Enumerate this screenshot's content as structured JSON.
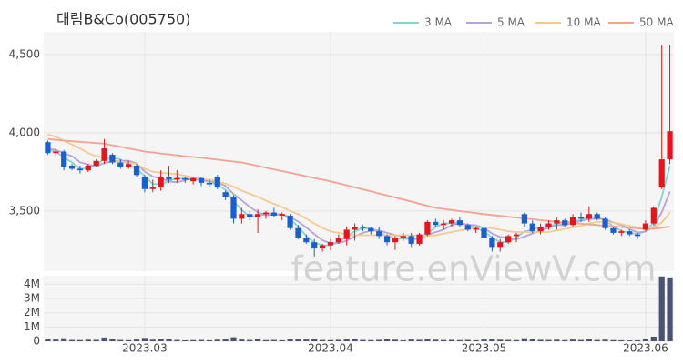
{
  "chart_data": {
    "type": "candlestick",
    "title": "대림B&Co(005750)",
    "watermark": "feature.enViewV.com",
    "categories": [
      null,
      null,
      null,
      null,
      null,
      null,
      null,
      null,
      null,
      null,
      null,
      null,
      "2023.03",
      null,
      null,
      null,
      null,
      null,
      null,
      null,
      null,
      null,
      null,
      null,
      null,
      null,
      null,
      null,
      null,
      null,
      null,
      null,
      null,
      null,
      null,
      "2023.04",
      null,
      null,
      null,
      null,
      null,
      null,
      null,
      null,
      null,
      null,
      null,
      null,
      null,
      null,
      null,
      null,
      null,
      null,
      "2023.05",
      null,
      null,
      null,
      null,
      null,
      null,
      null,
      null,
      null,
      null,
      null,
      null,
      null,
      null,
      null,
      null,
      null,
      null,
      null,
      "2023.06",
      null,
      null,
      null
    ],
    "open": [
      3940,
      3870,
      3880,
      3790,
      3770,
      3760,
      3790,
      3820,
      3860,
      3810,
      3780,
      3790,
      3720,
      3640,
      3650,
      3720,
      3700,
      3710,
      3690,
      3710,
      3680,
      3720,
      3620,
      3590,
      3450,
      3480,
      3460,
      3480,
      3490,
      3470,
      3470,
      3390,
      3330,
      3300,
      3260,
      3280,
      3300,
      3320,
      3380,
      3400,
      3390,
      3370,
      3340,
      3300,
      3330,
      3340,
      3290,
      3350,
      3430,
      3410,
      3420,
      3440,
      3410,
      3380,
      3390,
      3330,
      3270,
      3300,
      3340,
      3480,
      3420,
      3370,
      3400,
      3420,
      3440,
      3410,
      3460,
      3450,
      3480,
      3450,
      3390,
      3360,
      3370,
      3350,
      3380,
      3420,
      3650,
      3830
    ],
    "high": [
      3950,
      3900,
      3890,
      3800,
      3790,
      3800,
      3830,
      3960,
      3870,
      3830,
      3820,
      3800,
      3730,
      3700,
      3760,
      3790,
      3760,
      3720,
      3720,
      3720,
      3700,
      3730,
      3630,
      3600,
      3520,
      3500,
      3510,
      3500,
      3520,
      3490,
      3480,
      3410,
      3350,
      3320,
      3290,
      3320,
      3350,
      3400,
      3420,
      3410,
      3400,
      3400,
      3350,
      3340,
      3360,
      3360,
      3360,
      3440,
      3450,
      3440,
      3450,
      3460,
      3420,
      3400,
      3400,
      3340,
      3320,
      3350,
      3360,
      3490,
      3440,
      3420,
      3440,
      3460,
      3450,
      3480,
      3490,
      3530,
      3490,
      3460,
      3400,
      3380,
      3380,
      3360,
      3440,
      3530,
      4560,
      4560
    ],
    "low": [
      3860,
      3850,
      3760,
      3760,
      3740,
      3750,
      3780,
      3800,
      3800,
      3770,
      3770,
      3720,
      3620,
      3620,
      3630,
      3680,
      3680,
      3680,
      3670,
      3660,
      3650,
      3640,
      3570,
      3420,
      3420,
      3440,
      3360,
      3450,
      3460,
      3440,
      3380,
      3320,
      3290,
      3210,
      3240,
      3250,
      3290,
      3280,
      3310,
      3370,
      3350,
      3320,
      3280,
      3250,
      3310,
      3270,
      3280,
      3340,
      3400,
      3380,
      3400,
      3400,
      3370,
      3360,
      3320,
      3240,
      3240,
      3290,
      3300,
      3400,
      3360,
      3350,
      3380,
      3380,
      3400,
      3400,
      3430,
      3430,
      3440,
      3380,
      3350,
      3340,
      3340,
      3320,
      3370,
      3410,
      3640,
      3800
    ],
    "close": [
      3870,
      3880,
      3780,
      3770,
      3760,
      3790,
      3820,
      3900,
      3810,
      3780,
      3800,
      3730,
      3640,
      3650,
      3720,
      3700,
      3710,
      3700,
      3710,
      3680,
      3670,
      3650,
      3590,
      3450,
      3480,
      3460,
      3480,
      3490,
      3470,
      3480,
      3390,
      3330,
      3300,
      3260,
      3280,
      3300,
      3330,
      3380,
      3400,
      3390,
      3370,
      3340,
      3300,
      3330,
      3340,
      3290,
      3350,
      3430,
      3410,
      3420,
      3440,
      3410,
      3380,
      3390,
      3330,
      3270,
      3300,
      3340,
      3350,
      3420,
      3370,
      3400,
      3420,
      3440,
      3410,
      3460,
      3450,
      3480,
      3450,
      3390,
      3360,
      3370,
      3350,
      3340,
      3420,
      3520,
      3830,
      4010
    ],
    "volume": [
      180000,
      120000,
      210000,
      90000,
      80000,
      110000,
      100000,
      260000,
      150000,
      90000,
      80000,
      120000,
      230000,
      110000,
      160000,
      130000,
      90000,
      70000,
      80000,
      90000,
      70000,
      110000,
      140000,
      280000,
      120000,
      90000,
      170000,
      80000,
      90000,
      70000,
      130000,
      150000,
      120000,
      190000,
      90000,
      80000,
      100000,
      140000,
      160000,
      90000,
      80000,
      100000,
      130000,
      110000,
      70000,
      120000,
      100000,
      180000,
      110000,
      90000,
      100000,
      80000,
      90000,
      70000,
      120000,
      170000,
      110000,
      90000,
      80000,
      210000,
      130000,
      100000,
      90000,
      110000,
      80000,
      120000,
      90000,
      150000,
      90000,
      110000,
      80000,
      70000,
      60000,
      70000,
      150000,
      320000,
      4550000,
      4480000
    ],
    "up_color": "#e3161e",
    "down_color": "#1a5fd0",
    "volume_color": "#4a5372",
    "series": [
      {
        "name": "3 MA",
        "color": "#86d3d3",
        "values": [
          3890,
          3880,
          3843,
          3810,
          3770,
          3773,
          3790,
          3837,
          3843,
          3830,
          3797,
          3770,
          3723,
          3673,
          3670,
          3690,
          3710,
          3703,
          3707,
          3697,
          3687,
          3667,
          3637,
          3563,
          3507,
          3463,
          3473,
          3477,
          3480,
          3480,
          3447,
          3400,
          3340,
          3297,
          3280,
          3280,
          3303,
          3337,
          3370,
          3390,
          3387,
          3367,
          3337,
          3323,
          3323,
          3320,
          3327,
          3357,
          3397,
          3420,
          3423,
          3423,
          3410,
          3393,
          3367,
          3330,
          3300,
          3303,
          3330,
          3370,
          3380,
          3397,
          3397,
          3420,
          3423,
          3437,
          3440,
          3463,
          3460,
          3440,
          3400,
          3373,
          3360,
          3353,
          3370,
          3427,
          3590,
          3787
        ]
      },
      {
        "name": "5 MA",
        "color": "#b7a3d6",
        "values": [
          3900,
          3890,
          3870,
          3850,
          3812,
          3796,
          3784,
          3808,
          3816,
          3820,
          3822,
          3804,
          3752,
          3720,
          3708,
          3688,
          3684,
          3696,
          3708,
          3700,
          3694,
          3682,
          3660,
          3608,
          3568,
          3526,
          3492,
          3472,
          3476,
          3476,
          3462,
          3432,
          3394,
          3352,
          3312,
          3294,
          3294,
          3310,
          3338,
          3360,
          3374,
          3376,
          3360,
          3346,
          3336,
          3320,
          3322,
          3348,
          3364,
          3380,
          3410,
          3422,
          3412,
          3408,
          3390,
          3356,
          3334,
          3326,
          3318,
          3336,
          3356,
          3376,
          3392,
          3410,
          3408,
          3426,
          3436,
          3448,
          3450,
          3446,
          3426,
          3410,
          3384,
          3362,
          3368,
          3400,
          3492,
          3624
        ]
      },
      {
        "name": "10 MA",
        "color": "#f5c990",
        "values": [
          3990,
          3975,
          3950,
          3925,
          3900,
          3870,
          3850,
          3840,
          3825,
          3815,
          3810,
          3800,
          3770,
          3750,
          3745,
          3740,
          3735,
          3725,
          3715,
          3705,
          3700,
          3690,
          3675,
          3655,
          3630,
          3610,
          3590,
          3565,
          3545,
          3525,
          3500,
          3480,
          3450,
          3420,
          3390,
          3370,
          3360,
          3350,
          3345,
          3345,
          3345,
          3345,
          3345,
          3345,
          3345,
          3345,
          3340,
          3340,
          3345,
          3355,
          3365,
          3375,
          3385,
          3395,
          3395,
          3390,
          3380,
          3370,
          3365,
          3365,
          3365,
          3365,
          3365,
          3375,
          3385,
          3395,
          3405,
          3420,
          3430,
          3430,
          3425,
          3415,
          3405,
          3395,
          3390,
          3395,
          3425,
          3490
        ]
      },
      {
        "name": "50 MA",
        "color": "#f3a38e",
        "values": [
          3960,
          3955,
          3950,
          3946,
          3942,
          3938,
          3934,
          3930,
          3920,
          3910,
          3900,
          3890,
          3880,
          3874,
          3868,
          3862,
          3856,
          3850,
          3845,
          3840,
          3834,
          3828,
          3822,
          3816,
          3810,
          3799,
          3788,
          3777,
          3766,
          3755,
          3744,
          3733,
          3722,
          3711,
          3700,
          3690,
          3677,
          3664,
          3651,
          3638,
          3625,
          3612,
          3599,
          3586,
          3573,
          3560,
          3546,
          3533,
          3520,
          3513,
          3506,
          3499,
          3493,
          3486,
          3480,
          3474,
          3469,
          3463,
          3458,
          3452,
          3447,
          3441,
          3436,
          3430,
          3426,
          3422,
          3418,
          3414,
          3410,
          3405,
          3401,
          3397,
          3393,
          3389,
          3385,
          3386,
          3392,
          3400
        ]
      }
    ],
    "ylim": [
      3115,
      4645
    ],
    "yticks": [
      {
        "value": 3500,
        "label": "3,500"
      },
      {
        "value": 4000,
        "label": "4,000"
      },
      {
        "value": 4500,
        "label": "4,500"
      }
    ],
    "volume_ylim": [
      0,
      4600000
    ],
    "volume_ticks": [
      0,
      {
        "value": 1000000,
        "label": "1M"
      },
      {
        "value": 2000000,
        "label": "2M"
      },
      {
        "value": 3000000,
        "label": "3M"
      },
      {
        "value": 4000000,
        "label": "4M"
      }
    ],
    "grid": true
  }
}
